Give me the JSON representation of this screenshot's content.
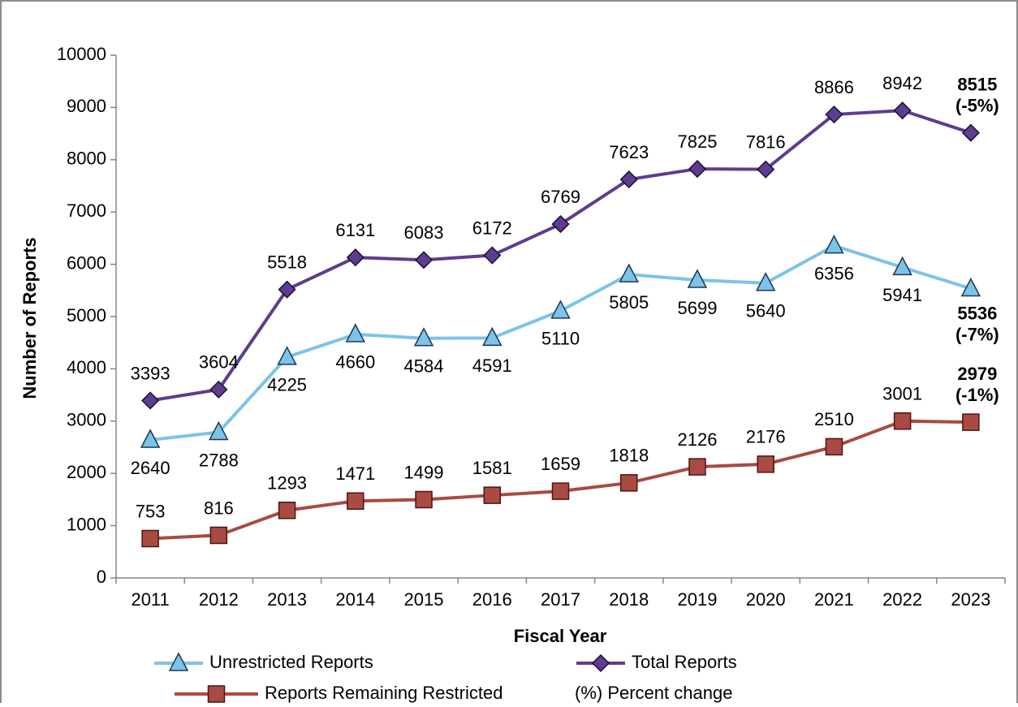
{
  "chart_data": {
    "type": "line",
    "xlabel": "Fiscal Year",
    "ylabel": "Number of Reports",
    "categories": [
      "2011",
      "2012",
      "2013",
      "2014",
      "2015",
      "2016",
      "2017",
      "2018",
      "2019",
      "2020",
      "2021",
      "2022",
      "2023"
    ],
    "series": [
      {
        "name": "Unrestricted Reports",
        "color": "#7cc3e8",
        "marker": "triangle",
        "label_position": "below",
        "values": [
          2640,
          2788,
          4225,
          4660,
          4584,
          4591,
          5110,
          5805,
          5699,
          5640,
          6356,
          5941,
          5536
        ],
        "change_label": "(-7%)"
      },
      {
        "name": "Total Reports",
        "color": "#5e3c8f",
        "marker": "diamond",
        "label_position": "above",
        "values": [
          3393,
          3604,
          5518,
          6131,
          6083,
          6172,
          6769,
          7623,
          7825,
          7816,
          8866,
          8942,
          8515
        ],
        "change_label": "(-5%)"
      },
      {
        "name": "Reports Remaining Restricted",
        "color": "#a94a43",
        "marker": "square",
        "label_position": "above",
        "values": [
          753,
          816,
          1293,
          1471,
          1499,
          1581,
          1659,
          1818,
          2126,
          2176,
          2510,
          3001,
          2979
        ],
        "change_label": "(-1%)"
      }
    ],
    "legend_note": "(%) Percent change",
    "ylim": [
      0,
      10000
    ],
    "yticks": [
      0,
      1000,
      2000,
      3000,
      4000,
      5000,
      6000,
      7000,
      8000,
      9000,
      10000
    ],
    "grid": false
  }
}
